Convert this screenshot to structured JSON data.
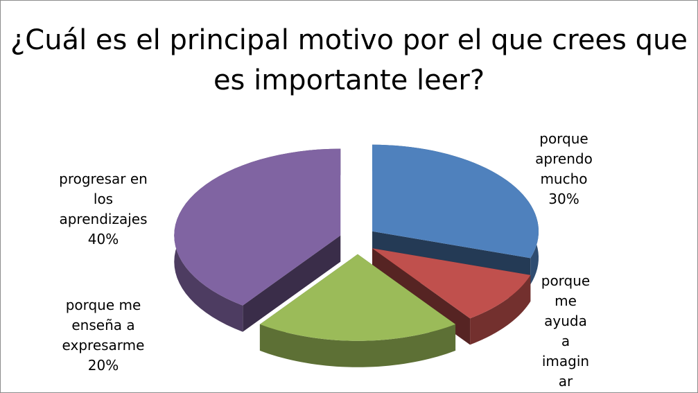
{
  "chart_data": {
    "type": "pie",
    "title": "¿Cuál es el principal motivo por el que crees que es importante leer?",
    "categories": [
      "porque aprendo mucho",
      "porque me ayuda a imaginar",
      "porque me enseña a expresarme",
      "progresar en los aprendizajes"
    ],
    "values": [
      30,
      10,
      20,
      40
    ],
    "value_labels": [
      "30%",
      null,
      "20%",
      "40%"
    ],
    "colors": [
      "#4f81bd",
      "#c0504d",
      "#9bbb59",
      "#8064a2"
    ]
  }
}
